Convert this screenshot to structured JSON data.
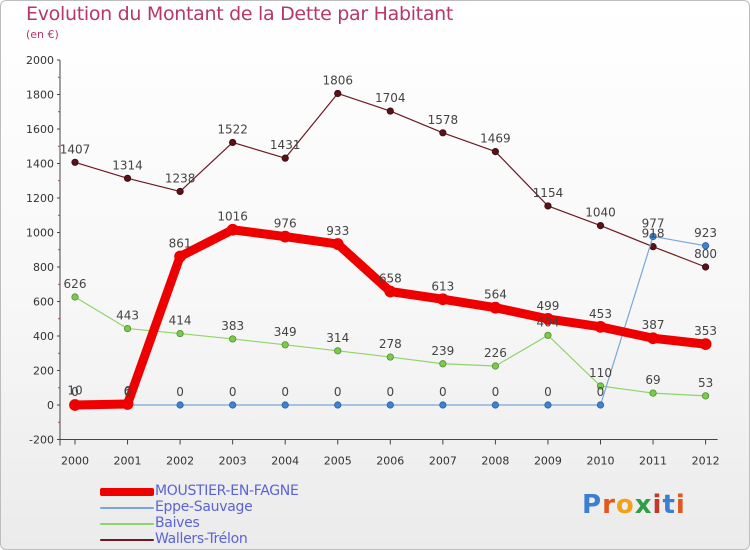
{
  "header": {
    "title": "Evolution du Montant de la Dette par Habitant",
    "subtitle": "(en €)"
  },
  "logo": {
    "text": "Proxiti",
    "letter_colors": [
      "#3a7fd0",
      "#e0571f",
      "#f0a21a",
      "#2f9e44",
      "#c0392b",
      "#3a7fd0",
      "#e0571f"
    ]
  },
  "chart_data": {
    "type": "line",
    "title": "Evolution du Montant de la Dette par Habitant",
    "subtitle": "(en €)",
    "xlabel": "",
    "ylabel": "",
    "ylim": [
      -200,
      2000
    ],
    "yticks": [
      -200,
      0,
      200,
      400,
      600,
      800,
      1000,
      1200,
      1400,
      1600,
      1800,
      2000
    ],
    "grid": false,
    "legend_position": "bottom-left",
    "x": [
      "2000",
      "2001",
      "2002",
      "2003",
      "2004",
      "2005",
      "2006",
      "2007",
      "2008",
      "2009",
      "2010",
      "2011",
      "2012"
    ],
    "series": [
      {
        "name": "Wallers-Trélon",
        "color": "#6b1a22",
        "values": [
          1407,
          1314,
          1238,
          1522,
          1431,
          1806,
          1704,
          1578,
          1469,
          1154,
          1040,
          918,
          800
        ],
        "labels": [
          "1407",
          "1314",
          "1238",
          "1522",
          "1431",
          "1806",
          "1704",
          "1578",
          "1469",
          "1154",
          "1040",
          "918",
          "800"
        ]
      },
      {
        "name": "Baives",
        "color": "#8fd46a",
        "values": [
          626,
          443,
          414,
          383,
          349,
          314,
          278,
          239,
          226,
          404,
          110,
          69,
          53
        ],
        "labels": [
          "626",
          "443",
          "414",
          "383",
          "349",
          "314",
          "278",
          "239",
          "226",
          "404",
          "110",
          "69",
          "53"
        ]
      },
      {
        "name": "Eppe-Sauvage",
        "color": "#7aa6d6",
        "values": [
          10,
          0,
          0,
          0,
          0,
          0,
          0,
          0,
          0,
          0,
          0,
          977,
          923
        ],
        "labels": [
          "10",
          "0",
          "0",
          "0",
          "0",
          "0",
          "0",
          "0",
          "0",
          "0",
          "0",
          "977",
          "923"
        ]
      },
      {
        "name": "MOUSTIER-EN-FAGNE",
        "color": "#ee0000",
        "values": [
          0,
          6,
          861,
          1016,
          976,
          933,
          658,
          613,
          564,
          499,
          453,
          387,
          353
        ],
        "labels": [
          "0",
          "6",
          "861",
          "1016",
          "976",
          "933",
          "658",
          "613",
          "564",
          "499",
          "453",
          "387",
          "353"
        ]
      }
    ]
  },
  "legend": [
    {
      "name": "MOUSTIER-EN-FAGNE",
      "color": "#ee0000"
    },
    {
      "name": "Eppe-Sauvage",
      "color": "#7aa6d6"
    },
    {
      "name": "Baives",
      "color": "#8fd46a"
    },
    {
      "name": "Wallers-Trélon",
      "color": "#6b1a22"
    }
  ]
}
